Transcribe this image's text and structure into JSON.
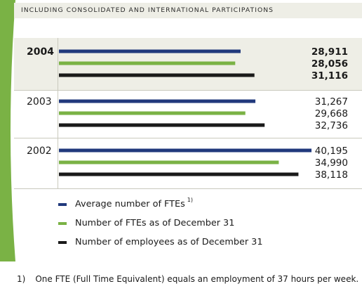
{
  "header": {
    "title": "INCLUDING CONSOLIDATED AND INTERNATIONAL PARTICIPATIONS"
  },
  "colors": {
    "blue": "#21397c",
    "green": "#7ab245",
    "black": "#1a1a1a",
    "highlight_band": "#eeeee6",
    "accent_green": "#7ab245"
  },
  "chart_data": {
    "type": "bar",
    "orientation": "horizontal",
    "title": "INCLUDING CONSOLIDATED AND INTERNATIONAL PARTICIPATIONS",
    "categories": [
      "2004",
      "2003",
      "2002"
    ],
    "series": [
      {
        "name": "Average number of FTEs",
        "color": "#21397c",
        "values": [
          28911,
          31267,
          40195
        ],
        "labels": [
          "28,911",
          "31,267",
          "40,195"
        ]
      },
      {
        "name": "Number of FTEs as of December 31",
        "color": "#7ab245",
        "values": [
          28056,
          29668,
          34990
        ],
        "labels": [
          "28,056",
          "29,668",
          "34,990"
        ]
      },
      {
        "name": "Number of employees as of December 31",
        "color": "#1a1a1a",
        "values": [
          31116,
          32736,
          38118
        ],
        "labels": [
          "31,116",
          "32,736",
          "38,118"
        ]
      }
    ],
    "xlim": [
      0,
      46000
    ],
    "grid": false,
    "legend_position": "bottom-left"
  },
  "legend": [
    {
      "label": "Average number of FTEs",
      "sup": "1)",
      "color": "#21397c"
    },
    {
      "label": "Number of FTEs as of December 31",
      "sup": "",
      "color": "#7ab245"
    },
    {
      "label": "Number of employees as of December 31",
      "sup": "",
      "color": "#1a1a1a"
    }
  ],
  "footnote": {
    "mark": "1)",
    "text": "One FTE (Full Time Equivalent) equals an employment of 37 hours per week."
  }
}
